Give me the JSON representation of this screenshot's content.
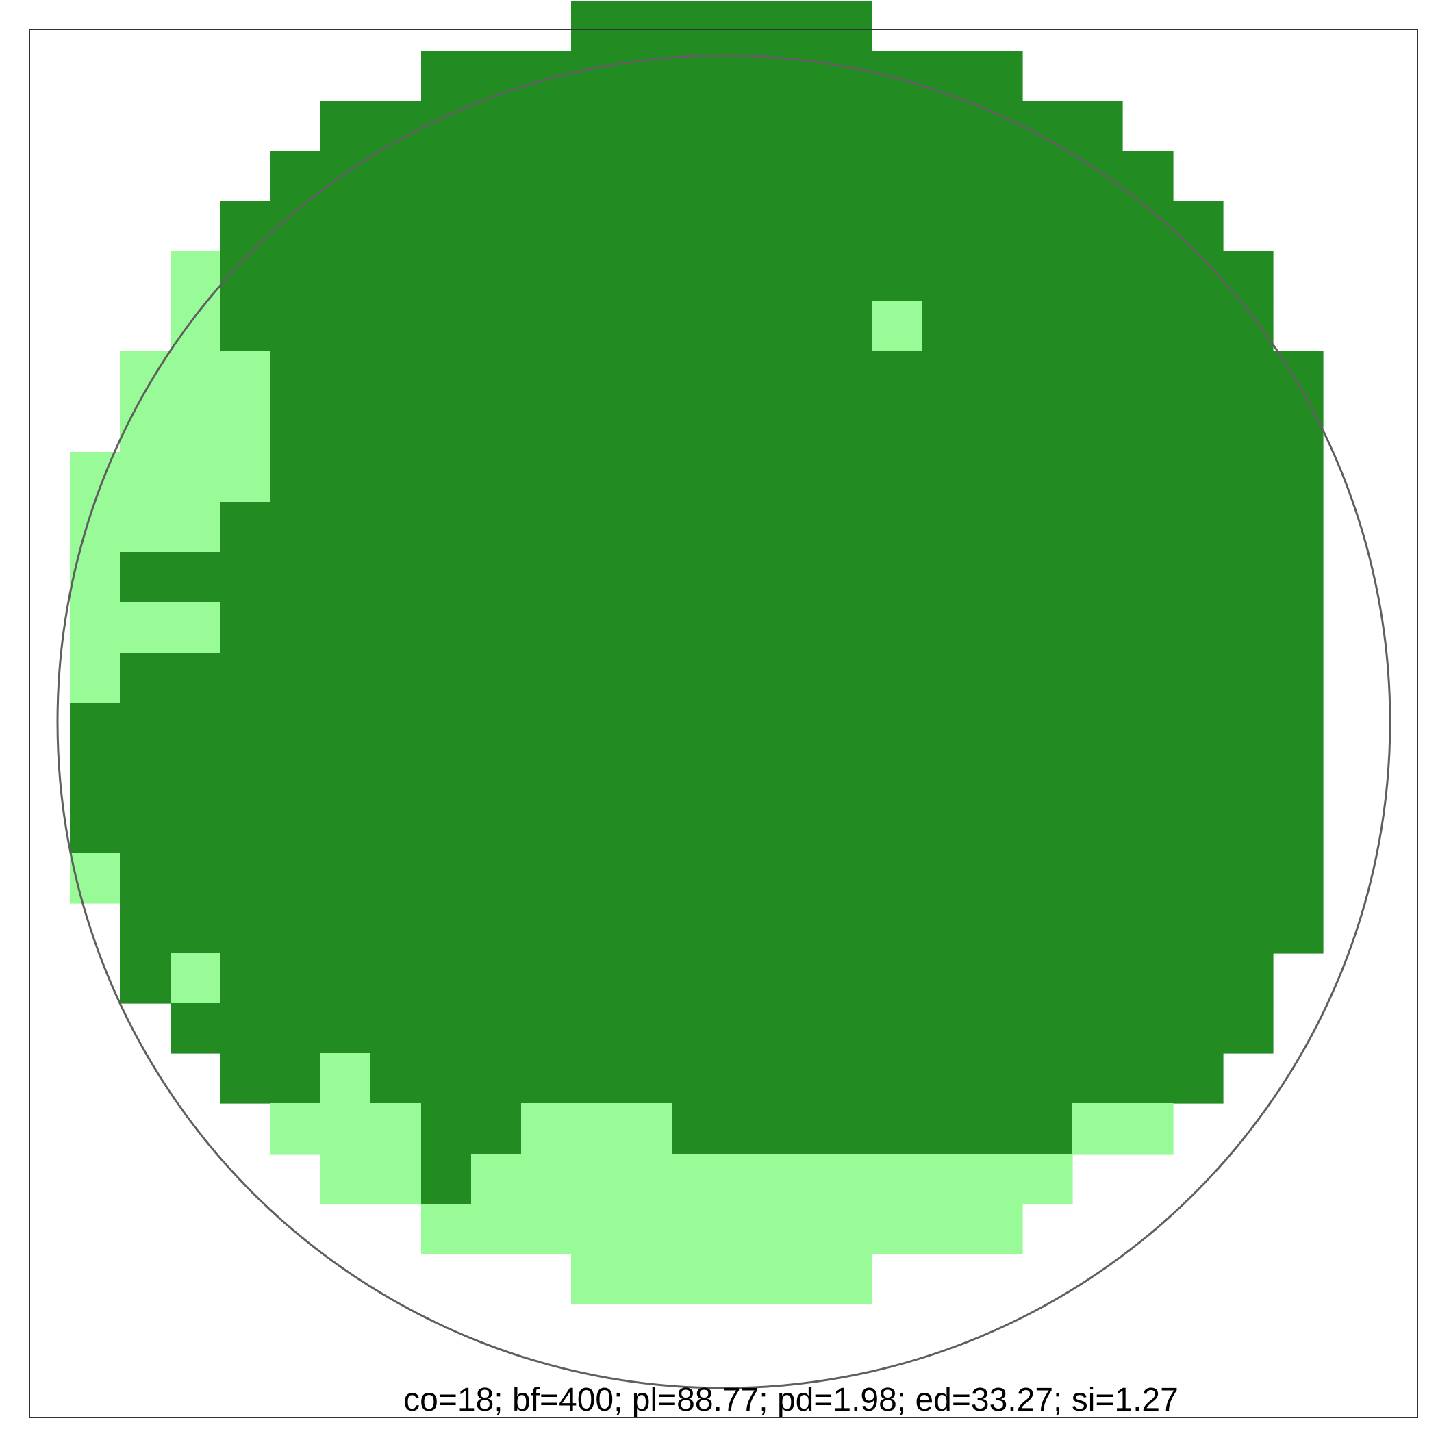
{
  "figure": {
    "stats_label": "co=18; bf=400; pl=88.77; pd=1.98; ed=33.27; si=1.27",
    "colors": {
      "dark_cell": "#228B22",
      "light_cell": "#98FB98",
      "circle_outline": "#5f5f5f",
      "frame": "#333333",
      "background": "#ffffff"
    },
    "grid": {
      "columns": 26,
      "rows": 26,
      "legend": "0 = empty, 1 = dark green, 2 = light green",
      "cells": [
        "00000000000111111000000000",
        "00000000111111111111000000",
        "00000011111111111111110000",
        "00000111111111111111111000",
        "00001111111111111111111100",
        "00021111111111111111111110",
        "00021111111111111211111110",
        "00222111111111111111111111",
        "00222111111111111111111111",
        "02222111111111111111111111",
        "02221111111111111111111111",
        "02111111111111111111111111",
        "02221111111111111111111111",
        "02111111111111111111111111",
        "01111111111111111111111111",
        "01111111111111111111111111",
        "01111111111111111111111111",
        "02111111111111111111111111",
        "00111111111111111111111111",
        "00121111111111111111111110",
        "00011111111111111111111110",
        "00001121111111111111111100",
        "00000222112221111111122000",
        "00000022122222222222200000",
        "00000000222222222222000000",
        "00000000000222222000000000"
      ]
    }
  }
}
